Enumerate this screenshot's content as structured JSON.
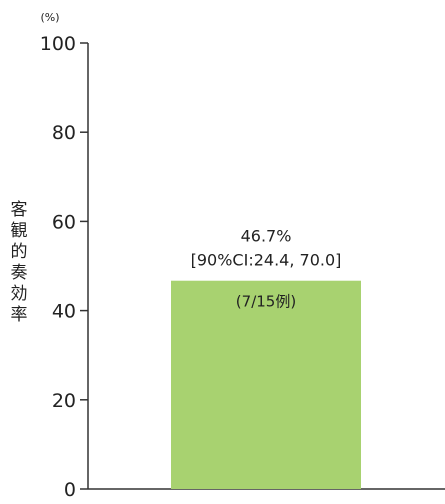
{
  "chart_data": {
    "type": "bar",
    "unit_label": "(%)",
    "ylabel": "客観的奏効率",
    "ylim": [
      0,
      100
    ],
    "yticks": [
      "0",
      "20",
      "40",
      "60",
      "80",
      "100"
    ],
    "categories": [
      ""
    ],
    "values": [
      46.7
    ],
    "value_label": "46.7%",
    "ci_label": "[90%CI:24.4, 70.0]",
    "count_label": "(7/15例)",
    "grid": false,
    "legend": "none",
    "bar_color": "#a8d270",
    "axis_color": "#333333"
  }
}
